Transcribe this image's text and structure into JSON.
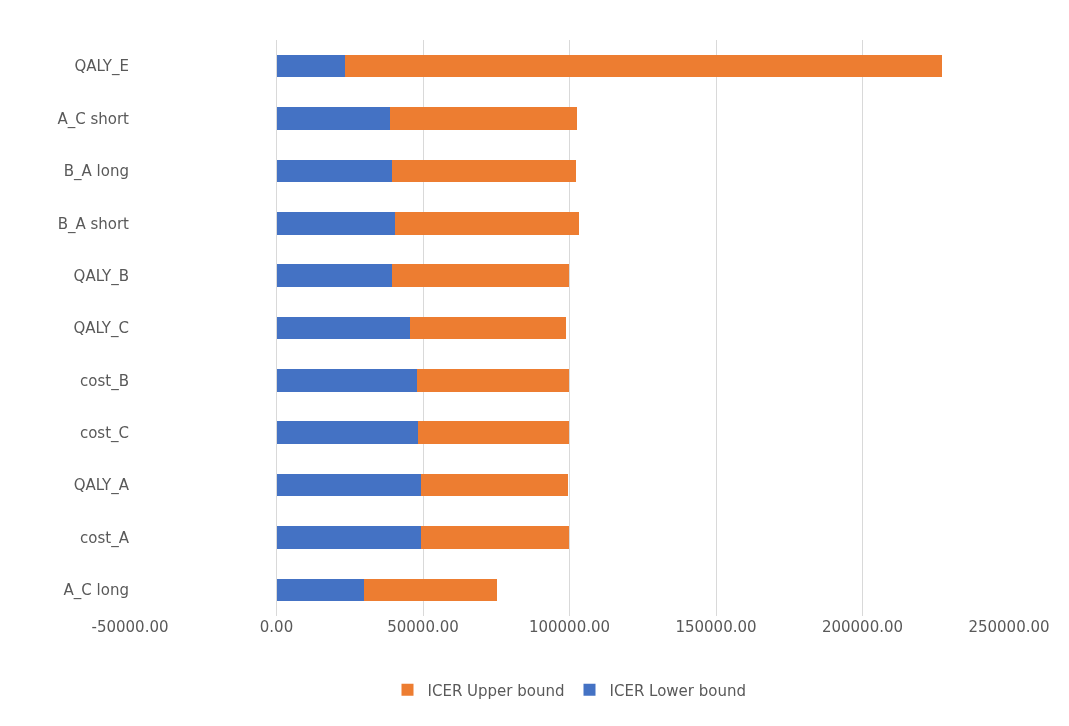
{
  "chart_data": {
    "type": "bar",
    "orientation": "horizontal",
    "stacked": true,
    "categories": [
      "QALY_E",
      "A_C short",
      "B_A long",
      "B_A short",
      "QALY_B",
      "QALY_C",
      "cost_B",
      "cost_C",
      "QALY_A",
      "cost_A",
      "A_C long"
    ],
    "series": [
      {
        "name": "ICER Lower bound",
        "color": "#4472c4",
        "values": [
          23500,
          38800,
          39400,
          40600,
          39500,
          45700,
          48100,
          48200,
          49300,
          49400,
          29900
        ]
      },
      {
        "name": "ICER Upper bound",
        "color": "#ed7d31",
        "values": [
          203500,
          63600,
          62700,
          62500,
          60400,
          53100,
          51600,
          51500,
          50100,
          50300,
          45500
        ]
      }
    ],
    "xlim": [
      -50000,
      250000
    ],
    "xticks": [
      {
        "value": -50000,
        "label": "-50000.00"
      },
      {
        "value": 0,
        "label": "0.00"
      },
      {
        "value": 50000,
        "label": "50000.00"
      },
      {
        "value": 100000,
        "label": "100000.00"
      },
      {
        "value": 150000,
        "label": "150000.00"
      },
      {
        "value": 200000,
        "label": "200000.00"
      },
      {
        "value": 250000,
        "label": "250000.00"
      }
    ],
    "grid": "x",
    "legend": "bottom"
  }
}
